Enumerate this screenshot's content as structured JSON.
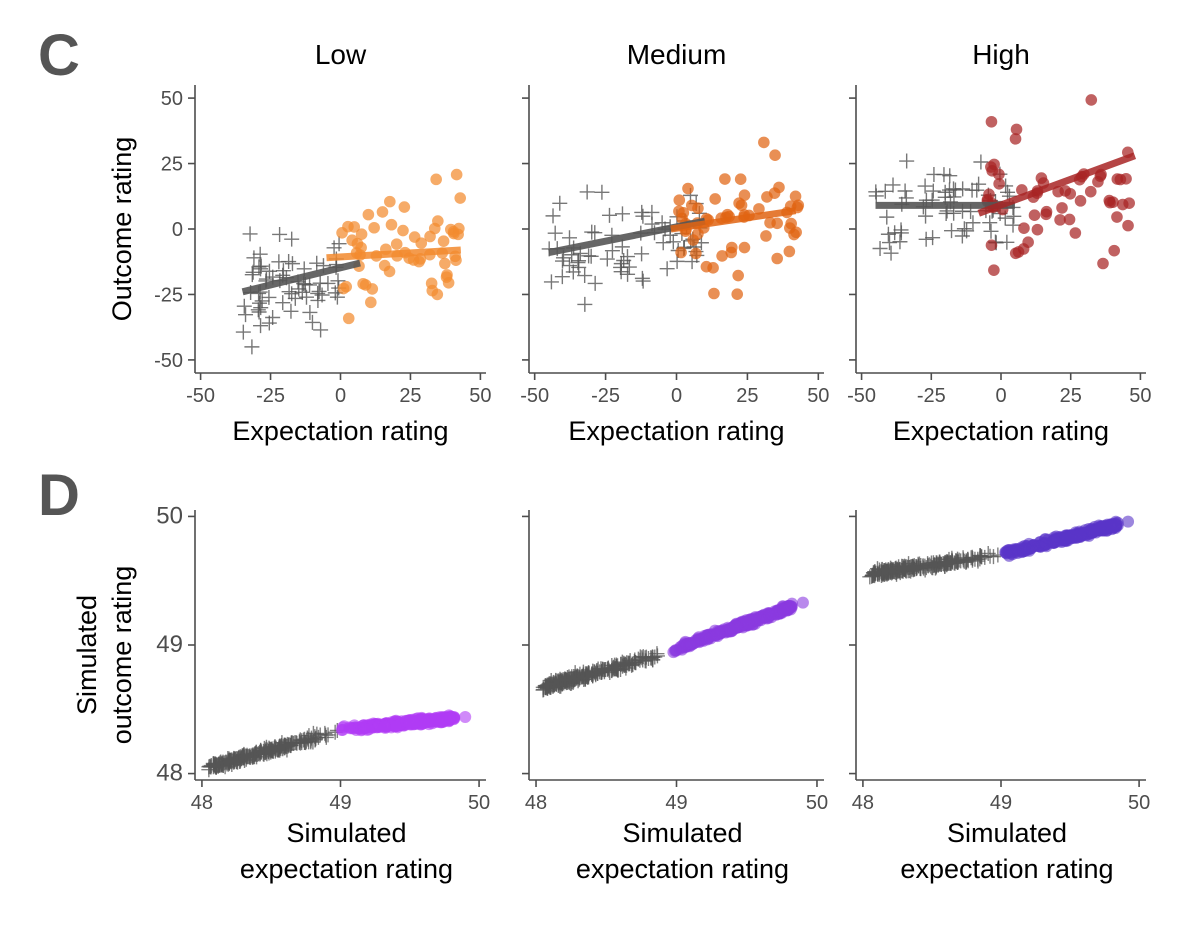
{
  "panels": {
    "c_letter": "C",
    "d_letter": "D"
  },
  "colors": {
    "grey": "#555555",
    "low": "#f28a2e",
    "medium": "#e06412",
    "high": "#a82424",
    "sim_low": "#b03cf5",
    "sim_medium": "#8a3ae0",
    "sim_high": "#5a35c8"
  },
  "chart_data": [
    {
      "type": "scatter",
      "panel": "C",
      "title": "Low",
      "xlabel": "Expectation rating",
      "ylabel": "Outcome rating",
      "xlim": [
        -52,
        52
      ],
      "ylim": [
        -55,
        55
      ],
      "xticks": [
        "-50",
        "-25",
        "0",
        "25",
        "50"
      ],
      "yticks": [
        "50",
        "25",
        "0",
        "-25",
        "-50"
      ],
      "grey_cluster": {
        "marker": "cross",
        "n": 70,
        "x_range": [
          -35,
          0
        ],
        "y_center": -20,
        "y_spread": 9
      },
      "colored_cluster": {
        "marker": "circle",
        "n": 60,
        "x_range": [
          0,
          43
        ],
        "y_center": -9,
        "y_spread": 10
      },
      "fit_lines": [
        {
          "color": "grey",
          "x": [
            -35,
            7
          ],
          "y": [
            -24,
            -13
          ]
        },
        {
          "color": "low",
          "x": [
            -5,
            43
          ],
          "y": [
            -11,
            -8
          ]
        }
      ]
    },
    {
      "type": "scatter",
      "panel": "C",
      "title": "Medium",
      "xlabel": "Expectation rating",
      "ylabel": "",
      "xlim": [
        -52,
        52
      ],
      "ylim": [
        -55,
        55
      ],
      "xticks": [
        "-50",
        "-25",
        "0",
        "25",
        "50"
      ],
      "yticks": [
        "",
        "",
        "",
        "",
        ""
      ],
      "grey_cluster": {
        "marker": "cross",
        "n": 75,
        "x_range": [
          -45,
          10
        ],
        "y_center": -5,
        "y_spread": 8
      },
      "colored_cluster": {
        "marker": "circle",
        "n": 60,
        "x_range": [
          0,
          43
        ],
        "y_center": 2,
        "y_spread": 10
      },
      "fit_lines": [
        {
          "color": "grey",
          "x": [
            -45,
            10
          ],
          "y": [
            -9,
            3
          ]
        },
        {
          "color": "medium",
          "x": [
            -2,
            42
          ],
          "y": [
            0,
            7
          ]
        }
      ]
    },
    {
      "type": "scatter",
      "panel": "C",
      "title": "High",
      "xlabel": "Expectation rating",
      "ylabel": "",
      "xlim": [
        -52,
        52
      ],
      "ylim": [
        -55,
        55
      ],
      "xticks": [
        "-50",
        "-25",
        "0",
        "25",
        "50"
      ],
      "yticks": [
        "",
        "",
        "",
        "",
        ""
      ],
      "grey_cluster": {
        "marker": "cross",
        "n": 70,
        "x_range": [
          -45,
          5
        ],
        "y_center": 8,
        "y_spread": 11
      },
      "colored_cluster": {
        "marker": "circle",
        "n": 60,
        "x_range": [
          -5,
          47
        ],
        "y_center": 15,
        "y_spread": 12
      },
      "fit_lines": [
        {
          "color": "grey",
          "x": [
            -45,
            5
          ],
          "y": [
            9,
            9
          ]
        },
        {
          "color": "high",
          "x": [
            -8,
            48
          ],
          "y": [
            6,
            28
          ]
        }
      ]
    },
    {
      "type": "scatter",
      "panel": "D",
      "title": "",
      "xlabel": "Simulated expectation rating",
      "ylabel": "Simulated outcome rating",
      "xlim": [
        47.95,
        50.05
      ],
      "ylim": [
        47.95,
        50.05
      ],
      "xticks": [
        "48",
        "49",
        "50"
      ],
      "yticks": [
        "50",
        "49",
        "48"
      ],
      "grey_band": {
        "marker": "cross",
        "x_range": [
          48.05,
          49.0
        ],
        "y_start": 48.05,
        "y_end": 48.33
      },
      "colored_band": {
        "marker": "circle",
        "x_range": [
          49.0,
          49.9
        ],
        "y_start": 48.34,
        "y_end": 48.44
      }
    },
    {
      "type": "scatter",
      "panel": "D",
      "title": "",
      "xlabel": "Simulated expectation rating",
      "ylabel": "",
      "xlim": [
        47.95,
        50.05
      ],
      "ylim": [
        47.95,
        50.05
      ],
      "xticks": [
        "48",
        "49",
        "50"
      ],
      "yticks": [
        "",
        "",
        ""
      ],
      "grey_band": {
        "marker": "cross",
        "x_range": [
          48.05,
          48.95
        ],
        "y_start": 48.67,
        "y_end": 48.94
      },
      "colored_band": {
        "marker": "circle",
        "x_range": [
          48.95,
          49.9
        ],
        "y_start": 48.95,
        "y_end": 49.33
      }
    },
    {
      "type": "scatter",
      "panel": "D",
      "title": "",
      "xlabel": "Simulated expectation rating",
      "ylabel": "",
      "xlim": [
        47.95,
        50.05
      ],
      "ylim": [
        47.95,
        50.05
      ],
      "xticks": [
        "48",
        "49",
        "50"
      ],
      "yticks": [
        "",
        "",
        ""
      ],
      "grey_band": {
        "marker": "cross",
        "x_range": [
          48.05,
          49.0
        ],
        "y_start": 49.55,
        "y_end": 49.7
      },
      "colored_band": {
        "marker": "circle",
        "x_range": [
          49.0,
          49.92
        ],
        "y_start": 49.7,
        "y_end": 49.96
      }
    }
  ]
}
